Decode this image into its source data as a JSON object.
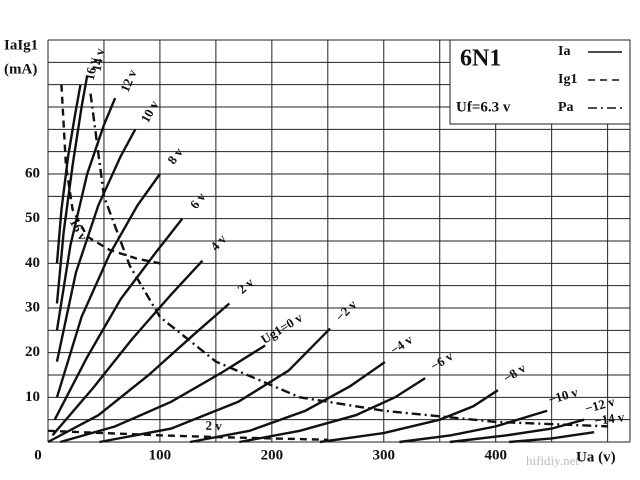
{
  "chart_data": {
    "type": "line",
    "title": "6N1",
    "note": "Uf=6.3 v",
    "y_label": "IaIg1",
    "y_unit": "(mA)",
    "x_label": "Ua (v)",
    "watermark": "hifidiy.net",
    "xlim": [
      0,
      520
    ],
    "ylim": [
      0,
      90
    ],
    "xticks": [
      0,
      100,
      200,
      300,
      400
    ],
    "yticks": [
      10,
      20,
      30,
      40,
      50,
      60
    ],
    "xgrid": [
      0,
      50,
      100,
      150,
      200,
      250,
      300,
      350,
      400,
      450,
      500,
      520
    ],
    "ygrid": [
      0,
      5,
      10,
      15,
      20,
      25,
      30,
      35,
      40,
      45,
      50,
      55,
      60,
      65,
      70,
      75,
      80,
      85,
      90
    ],
    "color": "#111111",
    "legend": [
      {
        "label": "Ia",
        "style": "solid"
      },
      {
        "label": "Ig1",
        "style": "dashed"
      },
      {
        "label": "Pa",
        "style": "dashdot"
      }
    ],
    "series": [
      {
        "name": "16 v",
        "style": "solid",
        "x": [
          8,
          12,
          18,
          24,
          29
        ],
        "values": [
          40,
          52,
          64,
          73,
          80
        ]
      },
      {
        "name": "14 v",
        "style": "solid",
        "x": [
          8,
          14,
          22,
          30,
          35
        ],
        "values": [
          31,
          47,
          62,
          75,
          82
        ]
      },
      {
        "name": "12 v",
        "style": "solid",
        "x": [
          8,
          20,
          35,
          50,
          60
        ],
        "values": [
          25,
          44,
          60,
          71,
          77
        ]
      },
      {
        "name": "10 v",
        "style": "solid",
        "x": [
          8,
          25,
          45,
          65,
          78
        ],
        "values": [
          18,
          38,
          53,
          64,
          70
        ]
      },
      {
        "name": "8 v",
        "style": "solid",
        "x": [
          8,
          30,
          55,
          80,
          100
        ],
        "values": [
          10,
          28,
          42,
          53,
          60
        ]
      },
      {
        "name": "6 v",
        "style": "solid",
        "x": [
          6,
          35,
          65,
          95,
          120
        ],
        "values": [
          5,
          19,
          32,
          42,
          50
        ]
      },
      {
        "name": "4 v",
        "style": "solid",
        "x": [
          4,
          40,
          75,
          110,
          138
        ],
        "values": [
          1.5,
          12,
          23,
          33,
          40.6
        ]
      },
      {
        "name": "2 v",
        "style": "solid",
        "x": [
          0,
          45,
          90,
          130,
          162
        ],
        "values": [
          0,
          6,
          15,
          24,
          31
        ]
      },
      {
        "name": "Ug1=0 v",
        "style": "solid",
        "x": [
          11,
          60,
          110,
          155,
          194
        ],
        "values": [
          0,
          3.5,
          9,
          15.5,
          21.6
        ]
      },
      {
        "name": "−2 v",
        "style": "solid",
        "x": [
          46,
          110,
          170,
          215,
          252
        ],
        "values": [
          0,
          3,
          9,
          16,
          25.4
        ]
      },
      {
        "name": "−4 v",
        "style": "solid",
        "x": [
          127,
          180,
          230,
          270,
          301
        ],
        "values": [
          0,
          2.5,
          7,
          12.5,
          17.9
        ]
      },
      {
        "name": "−6 v",
        "style": "solid",
        "x": [
          171,
          225,
          275,
          310,
          337
        ],
        "values": [
          0,
          2.5,
          6,
          10,
          14.3
        ]
      },
      {
        "name": "−8 v",
        "style": "solid",
        "x": [
          243,
          300,
          350,
          380,
          402
        ],
        "values": [
          0,
          2,
          5,
          8,
          11.6
        ]
      },
      {
        "name": "−10 v",
        "style": "solid",
        "x": [
          314,
          360,
          400,
          446
        ],
        "values": [
          0,
          1.5,
          3.5,
          7
        ]
      },
      {
        "name": "−12 v",
        "style": "solid",
        "x": [
          359,
          410,
          450,
          479
        ],
        "values": [
          0,
          1.5,
          3,
          5
        ]
      },
      {
        "name": "−14 v",
        "style": "solid",
        "x": [
          412,
          450,
          488
        ],
        "values": [
          0,
          0.8,
          2.2
        ]
      },
      {
        "name": "16 v",
        "style": "dashed",
        "x": [
          12,
          16,
          22,
          35,
          55,
          80,
          100
        ],
        "values": [
          80,
          62,
          52,
          46,
          43,
          41,
          40
        ]
      },
      {
        "name": "2 v",
        "style": "dashed",
        "x": [
          0,
          50,
          100,
          150,
          200,
          250
        ],
        "values": [
          2.5,
          2,
          1.5,
          1.1,
          0.8,
          0.5
        ]
      },
      {
        "style": "dashdot",
        "x": [
          38,
          50,
          73,
          100,
          150,
          225,
          300,
          400,
          500
        ],
        "values": [
          78,
          55,
          39.5,
          28,
          18,
          10,
          7,
          4.5,
          3.5
        ]
      }
    ]
  }
}
